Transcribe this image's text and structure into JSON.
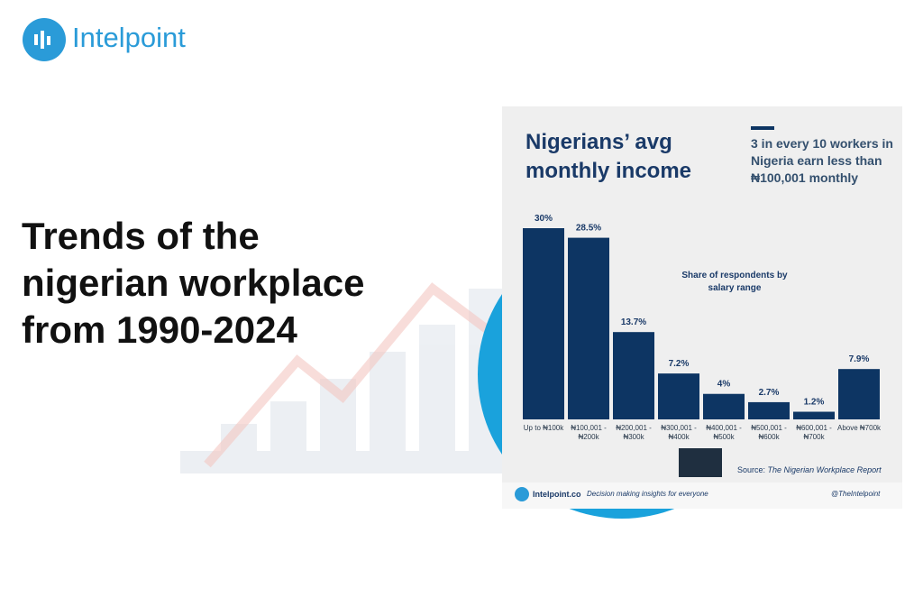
{
  "logo": "Intelpoint",
  "headline": "Trends of the nigerian workplace from 1990-2024",
  "chart_data": {
    "type": "bar",
    "title": "Nigerians’ avg monthly income",
    "callout": "3 in every 10 workers in Nigeria earn less than ₦100,001 monthly",
    "subtitle": "Share of respondents by salary range",
    "categories": [
      "Up to ₦100k",
      "₦100,001 - ₦200k",
      "₦200,001 - ₦300k",
      "₦300,001 - ₦400k",
      "₦400,001 - ₦500k",
      "₦500,001 - ₦600k",
      "₦600,001 - ₦700k",
      "Above ₦700k"
    ],
    "values": [
      30,
      28.5,
      13.7,
      7.2,
      4,
      2.7,
      1.2,
      7.9
    ],
    "value_labels": [
      "30%",
      "28.5%",
      "13.7%",
      "7.2%",
      "4%",
      "2.7%",
      "1.2%",
      "7.9%"
    ],
    "color": "#0d3563",
    "source_label": "Source:",
    "source": "The Nigerian Workplace Report"
  },
  "footer": {
    "site": "Intelpoint.co",
    "tagline": "Decision making insights for everyone",
    "handle": "@TheIntelpoint"
  }
}
